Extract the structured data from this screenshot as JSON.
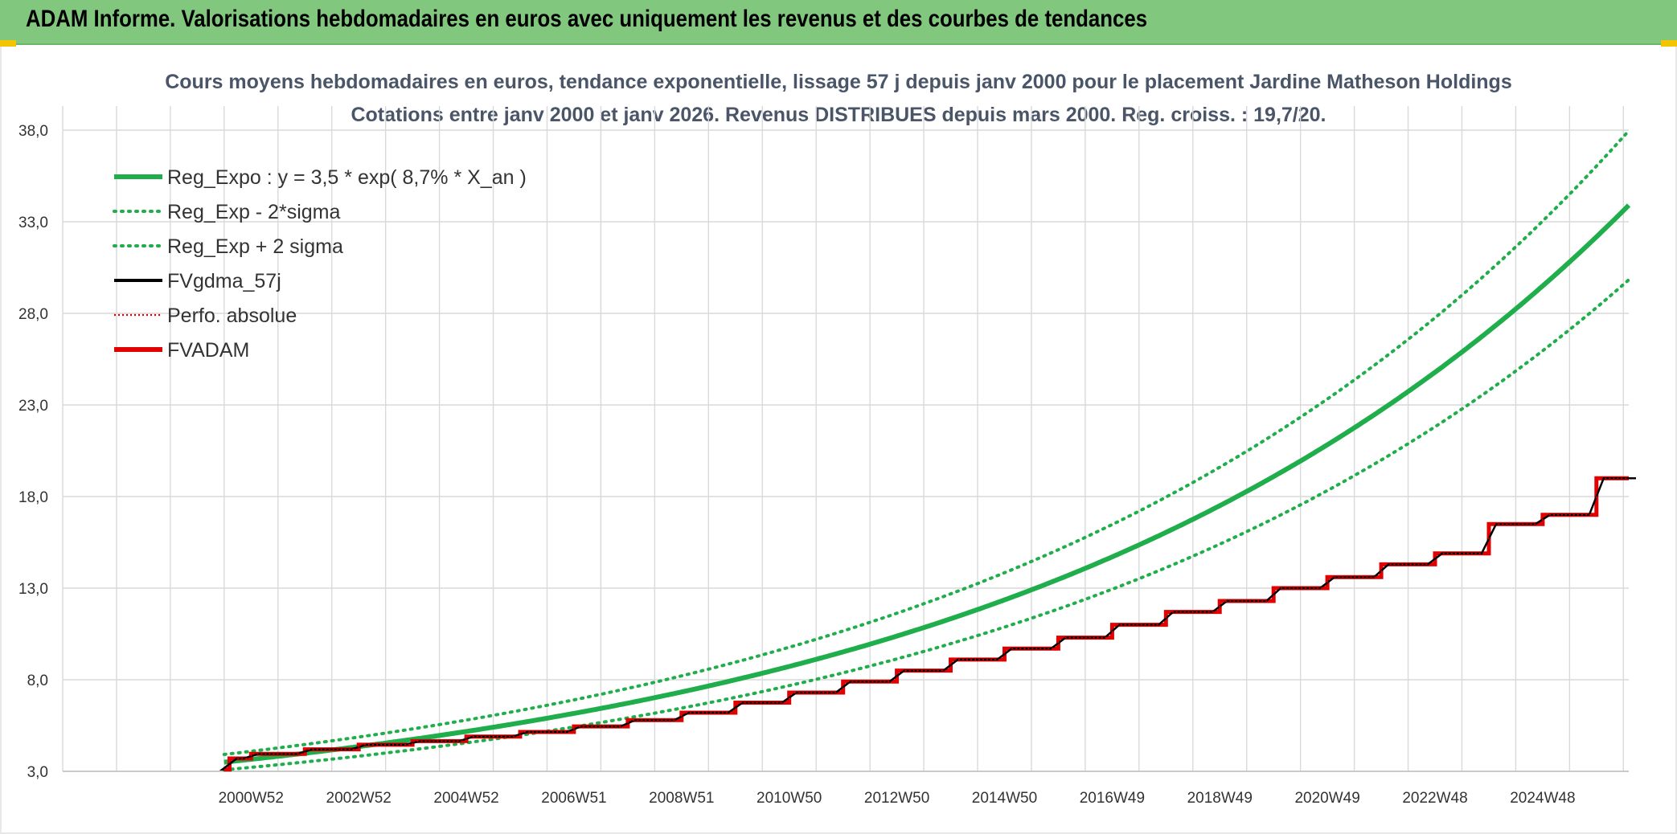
{
  "header": {
    "title": "ADAM Informe. Valorisations hebdomadaires en euros avec uniquement les revenus et des courbes de tendances"
  },
  "colors": {
    "header_bg": "#81c77e",
    "accent": "#f5c400",
    "regression": "#1fae4b",
    "bands": "#1fae4b",
    "fvgdma": "#000000",
    "perf_absolue": "#e00000",
    "fvadam": "#e00000",
    "grid": "#d9d9d9"
  },
  "chart_data": {
    "type": "line",
    "title": "Cours moyens hebdomadaires en euros, tendance exponentielle, lissage 57 j depuis janv 2000 pour le placement Jardine Matheson Holdings",
    "subtitle": "Cotations entre janv 2000 et janv 2026. Revenus DISTRIBUES depuis mars 2000. Reg. croiss. : 19,7/20.",
    "xlabel": "",
    "ylabel": "",
    "x_range": [
      2000.0,
      2026.1
    ],
    "x_axis_start": 1997.0,
    "ylim": [
      3.0,
      38.0
    ],
    "y_ticks": [
      "3,0",
      "8,0",
      "13,0",
      "18,0",
      "23,0",
      "28,0",
      "33,0",
      "38,0"
    ],
    "x_tick_labels": [
      "2000W52",
      "2002W52",
      "2004W52",
      "2006W51",
      "2008W51",
      "2010W50",
      "2012W50",
      "2014W50",
      "2016W49",
      "2018W49",
      "2020W49",
      "2022W48",
      "2024W48"
    ],
    "grid": true,
    "legend_position": "top-left",
    "legend": [
      {
        "label": "Reg_Expo : y = 3,5 * exp( 8,7% *  X_an )",
        "style": "solid-thick",
        "color": "#1fae4b"
      },
      {
        "label": "Reg_Exp - 2*sigma",
        "style": "dotted",
        "color": "#1fae4b"
      },
      {
        "label": "Reg_Exp + 2 sigma",
        "style": "dotted",
        "color": "#1fae4b"
      },
      {
        "label": "FVgdma_57j",
        "style": "solid",
        "color": "#000000"
      },
      {
        "label": "Perfo. absolue",
        "style": "dotted-thin",
        "color": "#e00000"
      },
      {
        "label": "FVADAM",
        "style": "solid-thick",
        "color": "#e00000"
      }
    ],
    "regression": {
      "a": 3.5,
      "rate": 0.087,
      "t0": 2000.0
    },
    "band_factors": {
      "lower": 0.88,
      "upper": 1.12
    },
    "fvadam_steps": [
      [
        2000.0,
        3.1
      ],
      [
        2000.1,
        3.7
      ],
      [
        2000.5,
        3.95
      ],
      [
        2001.5,
        4.2
      ],
      [
        2002.5,
        4.45
      ],
      [
        2003.5,
        4.65
      ],
      [
        2004.5,
        4.9
      ],
      [
        2005.5,
        5.15
      ],
      [
        2006.5,
        5.45
      ],
      [
        2007.5,
        5.8
      ],
      [
        2008.5,
        6.2
      ],
      [
        2009.5,
        6.75
      ],
      [
        2010.5,
        7.3
      ],
      [
        2011.5,
        7.9
      ],
      [
        2012.5,
        8.5
      ],
      [
        2013.5,
        9.1
      ],
      [
        2014.5,
        9.7
      ],
      [
        2015.5,
        10.3
      ],
      [
        2016.5,
        11.0
      ],
      [
        2017.5,
        11.7
      ],
      [
        2018.5,
        12.3
      ],
      [
        2019.5,
        13.0
      ],
      [
        2020.5,
        13.6
      ],
      [
        2021.5,
        14.3
      ],
      [
        2022.5,
        14.9
      ],
      [
        2023.5,
        16.5
      ],
      [
        2024.5,
        17.0
      ],
      [
        2025.5,
        19.0
      ],
      [
        2026.1,
        19.0
      ]
    ]
  }
}
